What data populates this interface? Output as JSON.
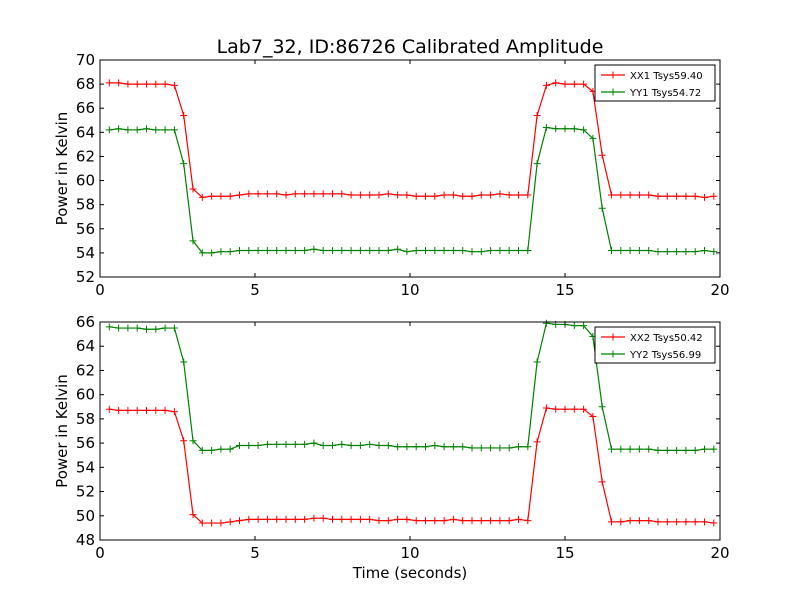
{
  "title": "Lab7_32, ID:86726 Calibrated Amplitude",
  "colors": {
    "red": "#ff0000",
    "green": "#008000"
  },
  "chart_data": [
    {
      "type": "line",
      "ylabel": "Power in Kelvin",
      "xlabel": "",
      "xlim": [
        0,
        20
      ],
      "ylim": [
        52,
        70
      ],
      "xticks": [
        0,
        5,
        10,
        15,
        20
      ],
      "yticks": [
        52,
        54,
        56,
        58,
        60,
        62,
        64,
        66,
        68,
        70
      ],
      "x": [
        0.3,
        0.6,
        0.9,
        1.2,
        1.5,
        1.8,
        2.1,
        2.4,
        2.7,
        3.0,
        3.3,
        3.6,
        3.9,
        4.2,
        4.5,
        4.8,
        5.1,
        5.4,
        5.7,
        6.0,
        6.3,
        6.6,
        6.9,
        7.2,
        7.5,
        7.8,
        8.1,
        8.4,
        8.7,
        9.0,
        9.3,
        9.6,
        9.9,
        10.2,
        10.5,
        10.8,
        11.1,
        11.4,
        11.7,
        12.0,
        12.3,
        12.6,
        12.9,
        13.2,
        13.5,
        13.8,
        14.1,
        14.4,
        14.7,
        15.0,
        15.3,
        15.6,
        15.9,
        16.2,
        16.5,
        16.8,
        17.1,
        17.4,
        17.7,
        18.0,
        18.3,
        18.6,
        18.9,
        19.2,
        19.5,
        19.8
      ],
      "series": [
        {
          "name": "XX1 Tsys59.40",
          "color": "#ff0000",
          "values": [
            68.1,
            68.1,
            68.0,
            68.0,
            68.0,
            68.0,
            68.0,
            67.9,
            65.4,
            59.3,
            58.6,
            58.7,
            58.7,
            58.7,
            58.8,
            58.9,
            58.9,
            58.9,
            58.9,
            58.8,
            58.9,
            58.9,
            58.9,
            58.9,
            58.9,
            58.9,
            58.8,
            58.8,
            58.8,
            58.8,
            58.9,
            58.8,
            58.8,
            58.7,
            58.7,
            58.7,
            58.8,
            58.8,
            58.7,
            58.7,
            58.8,
            58.8,
            58.9,
            58.8,
            58.8,
            58.8,
            65.4,
            67.9,
            68.1,
            68.0,
            68.0,
            68.0,
            67.4,
            62.1,
            58.8,
            58.8,
            58.8,
            58.8,
            58.8,
            58.7,
            58.7,
            58.7,
            58.7,
            58.7,
            58.6,
            58.7
          ]
        },
        {
          "name": "YY1 Tsys54.72",
          "color": "#008000",
          "values": [
            64.2,
            64.3,
            64.2,
            64.2,
            64.3,
            64.2,
            64.2,
            64.2,
            61.4,
            55.0,
            54.0,
            54.0,
            54.1,
            54.1,
            54.2,
            54.2,
            54.2,
            54.2,
            54.2,
            54.2,
            54.2,
            54.2,
            54.3,
            54.2,
            54.2,
            54.2,
            54.2,
            54.2,
            54.2,
            54.2,
            54.2,
            54.3,
            54.1,
            54.2,
            54.2,
            54.2,
            54.2,
            54.2,
            54.2,
            54.1,
            54.1,
            54.2,
            54.2,
            54.2,
            54.2,
            54.2,
            61.4,
            64.4,
            64.3,
            64.3,
            64.3,
            64.2,
            63.5,
            57.7,
            54.2,
            54.2,
            54.2,
            54.2,
            54.2,
            54.1,
            54.1,
            54.1,
            54.1,
            54.1,
            54.2,
            54.1
          ]
        }
      ],
      "legend": "top-right",
      "grid": false
    },
    {
      "type": "line",
      "ylabel": "Power in Kelvin",
      "xlabel": "Time (seconds)",
      "xlim": [
        0,
        20
      ],
      "ylim": [
        48,
        66
      ],
      "xticks": [
        0,
        5,
        10,
        15,
        20
      ],
      "yticks": [
        48,
        50,
        52,
        54,
        56,
        58,
        60,
        62,
        64,
        66
      ],
      "x": [
        0.3,
        0.6,
        0.9,
        1.2,
        1.5,
        1.8,
        2.1,
        2.4,
        2.7,
        3.0,
        3.3,
        3.6,
        3.9,
        4.2,
        4.5,
        4.8,
        5.1,
        5.4,
        5.7,
        6.0,
        6.3,
        6.6,
        6.9,
        7.2,
        7.5,
        7.8,
        8.1,
        8.4,
        8.7,
        9.0,
        9.3,
        9.6,
        9.9,
        10.2,
        10.5,
        10.8,
        11.1,
        11.4,
        11.7,
        12.0,
        12.3,
        12.6,
        12.9,
        13.2,
        13.5,
        13.8,
        14.1,
        14.4,
        14.7,
        15.0,
        15.3,
        15.6,
        15.9,
        16.2,
        16.5,
        16.8,
        17.1,
        17.4,
        17.7,
        18.0,
        18.3,
        18.6,
        18.9,
        19.2,
        19.5,
        19.8
      ],
      "series": [
        {
          "name": "XX2 Tsys50.42",
          "color": "#ff0000",
          "values": [
            58.8,
            58.7,
            58.7,
            58.7,
            58.7,
            58.7,
            58.7,
            58.6,
            56.2,
            50.1,
            49.4,
            49.4,
            49.4,
            49.5,
            49.6,
            49.7,
            49.7,
            49.7,
            49.7,
            49.7,
            49.7,
            49.7,
            49.8,
            49.8,
            49.7,
            49.7,
            49.7,
            49.7,
            49.7,
            49.6,
            49.6,
            49.7,
            49.7,
            49.6,
            49.6,
            49.6,
            49.6,
            49.7,
            49.6,
            49.6,
            49.6,
            49.6,
            49.6,
            49.6,
            49.7,
            49.6,
            56.1,
            58.9,
            58.8,
            58.8,
            58.8,
            58.8,
            58.2,
            52.8,
            49.5,
            49.5,
            49.6,
            49.6,
            49.6,
            49.5,
            49.5,
            49.5,
            49.5,
            49.5,
            49.5,
            49.4
          ]
        },
        {
          "name": "YY2 Tsys56.99",
          "color": "#008000",
          "values": [
            65.6,
            65.5,
            65.5,
            65.5,
            65.4,
            65.4,
            65.5,
            65.5,
            62.7,
            56.2,
            55.4,
            55.4,
            55.5,
            55.5,
            55.8,
            55.8,
            55.8,
            55.9,
            55.9,
            55.9,
            55.9,
            55.9,
            56.0,
            55.8,
            55.8,
            55.9,
            55.8,
            55.8,
            55.9,
            55.8,
            55.8,
            55.7,
            55.7,
            55.7,
            55.7,
            55.8,
            55.7,
            55.7,
            55.7,
            55.6,
            55.6,
            55.6,
            55.6,
            55.6,
            55.7,
            55.7,
            62.7,
            65.9,
            65.8,
            65.8,
            65.7,
            65.7,
            64.8,
            59.0,
            55.5,
            55.5,
            55.5,
            55.5,
            55.5,
            55.4,
            55.4,
            55.4,
            55.4,
            55.4,
            55.5,
            55.5
          ]
        }
      ],
      "legend": "top-right",
      "grid": false
    }
  ]
}
